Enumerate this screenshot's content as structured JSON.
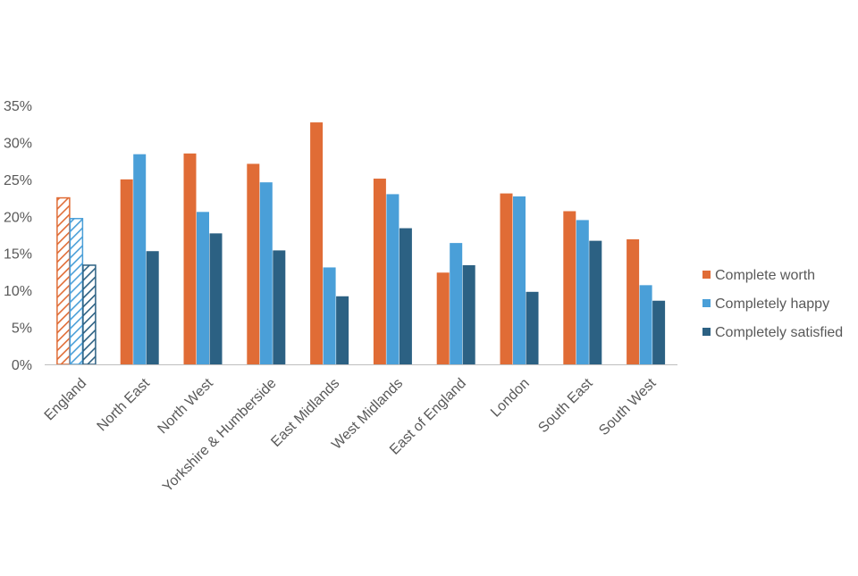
{
  "chart_data": {
    "type": "bar",
    "categories": [
      "England",
      "North East",
      "North West",
      "Yorkshire & Humberside",
      "East Midlands",
      "West Midlands",
      "East of England",
      "London",
      "South East",
      "South West"
    ],
    "series": [
      {
        "name": "Complete worth",
        "color": "#E06C36",
        "values": [
          22.5,
          25.0,
          28.5,
          27.1,
          32.7,
          25.1,
          12.4,
          23.1,
          20.7,
          16.9
        ]
      },
      {
        "name": "Completely happy",
        "color": "#4A9FD8",
        "values": [
          19.7,
          28.4,
          20.6,
          24.6,
          13.1,
          23.0,
          16.4,
          22.7,
          19.5,
          10.7
        ]
      },
      {
        "name": "Completely satisfied",
        "color": "#2C6183",
        "values": [
          13.4,
          15.3,
          17.7,
          15.4,
          9.2,
          18.4,
          13.4,
          9.8,
          16.7,
          8.6
        ]
      }
    ],
    "hatched_categories": [
      "England"
    ],
    "yticks": [
      "0%",
      "5%",
      "10%",
      "15%",
      "20%",
      "25%",
      "30%",
      "35%"
    ],
    "ylim": [
      0,
      35
    ],
    "title": "",
    "xlabel": "",
    "ylabel": "",
    "grid": false,
    "legend_position": "right"
  }
}
